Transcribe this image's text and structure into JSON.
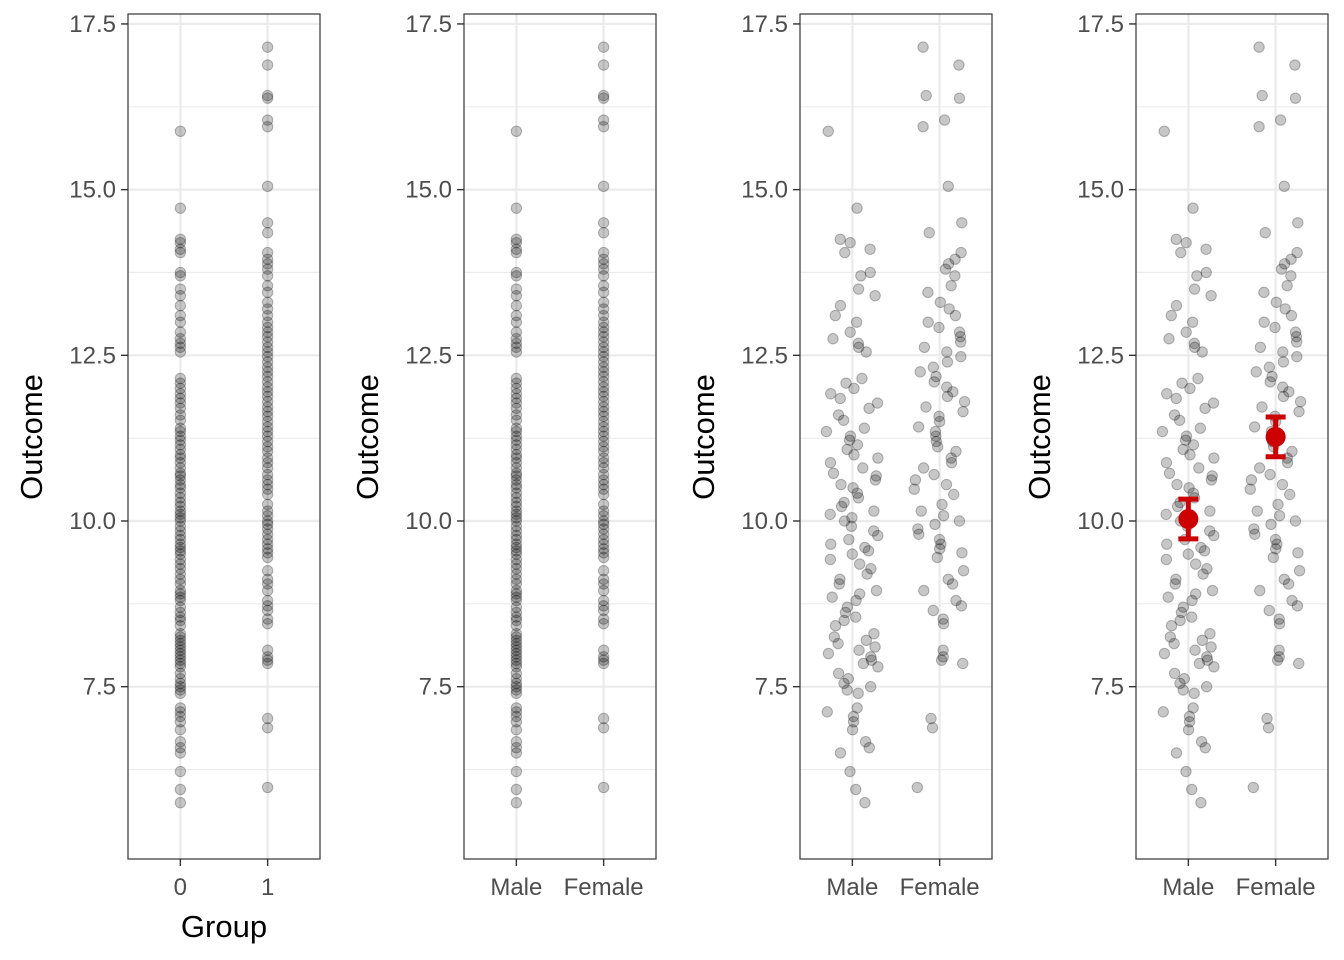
{
  "chart_data": [
    {
      "type": "scatter",
      "panel": 1,
      "ylabel": "Outcome",
      "xlabel": "Group",
      "categories": [
        "0",
        "1"
      ],
      "xlim": [
        -0.6,
        1.6
      ],
      "ylim": [
        4.9,
        17.65
      ],
      "yticks": [
        7.5,
        10.0,
        12.5,
        15.0,
        17.5
      ],
      "ytick_labels": [
        "7.5",
        "10.0",
        "12.5",
        "15.0",
        "17.5"
      ],
      "jitter": false,
      "grid": true,
      "point_color": "#000000",
      "point_alpha": 0.22
    },
    {
      "type": "scatter",
      "panel": 2,
      "ylabel": "Outcome",
      "xlabel": "",
      "categories": [
        "Male",
        "Female"
      ],
      "xlim": [
        -0.6,
        1.6
      ],
      "ylim": [
        4.9,
        17.65
      ],
      "yticks": [
        7.5,
        10.0,
        12.5,
        15.0,
        17.5
      ],
      "ytick_labels": [
        "7.5",
        "10.0",
        "12.5",
        "15.0",
        "17.5"
      ],
      "jitter": false,
      "grid": true,
      "point_color": "#000000",
      "point_alpha": 0.22
    },
    {
      "type": "scatter",
      "panel": 3,
      "ylabel": "Outcome",
      "xlabel": "",
      "categories": [
        "Male",
        "Female"
      ],
      "xlim": [
        -0.6,
        1.6
      ],
      "ylim": [
        4.9,
        17.65
      ],
      "yticks": [
        7.5,
        10.0,
        12.5,
        15.0,
        17.5
      ],
      "ytick_labels": [
        "7.5",
        "10.0",
        "12.5",
        "15.0",
        "17.5"
      ],
      "jitter": true,
      "grid": true,
      "point_color": "#000000",
      "point_alpha": 0.22
    },
    {
      "type": "scatter",
      "panel": 4,
      "ylabel": "Outcome",
      "xlabel": "",
      "categories": [
        "Male",
        "Female"
      ],
      "xlim": [
        -0.6,
        1.6
      ],
      "ylim": [
        4.9,
        17.65
      ],
      "yticks": [
        7.5,
        10.0,
        12.5,
        15.0,
        17.5
      ],
      "ytick_labels": [
        "7.5",
        "10.0",
        "12.5",
        "15.0",
        "17.5"
      ],
      "jitter": true,
      "grid": true,
      "point_color": "#000000",
      "point_alpha": 0.22,
      "summary": {
        "color": "#cc0000",
        "points": [
          {
            "category": "Male",
            "mean": 10.03,
            "lower": 9.73,
            "upper": 10.33
          },
          {
            "category": "Female",
            "mean": 11.27,
            "lower": 10.97,
            "upper": 11.57
          }
        ]
      }
    }
  ],
  "groups": [
    {
      "name": "Male",
      "values": [
        5.75,
        5.95,
        6.22,
        6.5,
        6.58,
        6.67,
        6.85,
        6.97,
        7.05,
        7.12,
        7.18,
        7.4,
        7.45,
        7.5,
        7.55,
        7.62,
        7.7,
        7.8,
        7.85,
        7.9,
        7.95,
        8.0,
        8.05,
        8.1,
        8.15,
        8.2,
        8.25,
        8.3,
        8.42,
        8.5,
        8.55,
        8.62,
        8.7,
        8.8,
        8.85,
        8.9,
        8.95,
        9.05,
        9.12,
        9.2,
        9.28,
        9.35,
        9.42,
        9.5,
        9.55,
        9.6,
        9.65,
        9.72,
        9.78,
        9.85,
        9.92,
        10.0,
        10.05,
        10.1,
        10.15,
        10.22,
        10.28,
        10.35,
        10.42,
        10.5,
        10.55,
        10.62,
        10.68,
        10.72,
        10.8,
        10.88,
        10.95,
        11.0,
        11.08,
        11.15,
        11.22,
        11.28,
        11.35,
        11.4,
        11.52,
        11.6,
        11.7,
        11.78,
        11.85,
        11.92,
        12.0,
        12.08,
        12.15,
        12.55,
        12.62,
        12.68,
        12.75,
        12.85,
        13.0,
        13.1,
        13.25,
        13.4,
        13.5,
        13.7,
        13.75,
        14.05,
        14.1,
        14.2,
        14.25,
        14.72,
        15.88
      ]
    },
    {
      "name": "Female",
      "values": [
        5.98,
        6.88,
        7.02,
        7.85,
        7.9,
        7.95,
        8.05,
        8.45,
        8.52,
        8.65,
        8.72,
        8.8,
        8.95,
        9.05,
        9.12,
        9.25,
        9.45,
        9.52,
        9.58,
        9.65,
        9.72,
        9.8,
        9.88,
        9.95,
        10.0,
        10.08,
        10.15,
        10.25,
        10.4,
        10.48,
        10.55,
        10.62,
        10.7,
        10.8,
        10.88,
        10.95,
        11.05,
        11.12,
        11.2,
        11.28,
        11.35,
        11.42,
        11.5,
        11.58,
        11.65,
        11.72,
        11.8,
        11.88,
        11.95,
        12.02,
        12.1,
        12.18,
        12.25,
        12.32,
        12.4,
        12.48,
        12.55,
        12.62,
        12.7,
        12.78,
        12.85,
        12.92,
        13.0,
        13.1,
        13.2,
        13.3,
        13.45,
        13.55,
        13.7,
        13.8,
        13.88,
        13.95,
        14.05,
        14.35,
        14.5,
        15.05,
        15.95,
        16.05,
        16.38,
        16.42,
        16.88,
        17.15
      ]
    }
  ]
}
